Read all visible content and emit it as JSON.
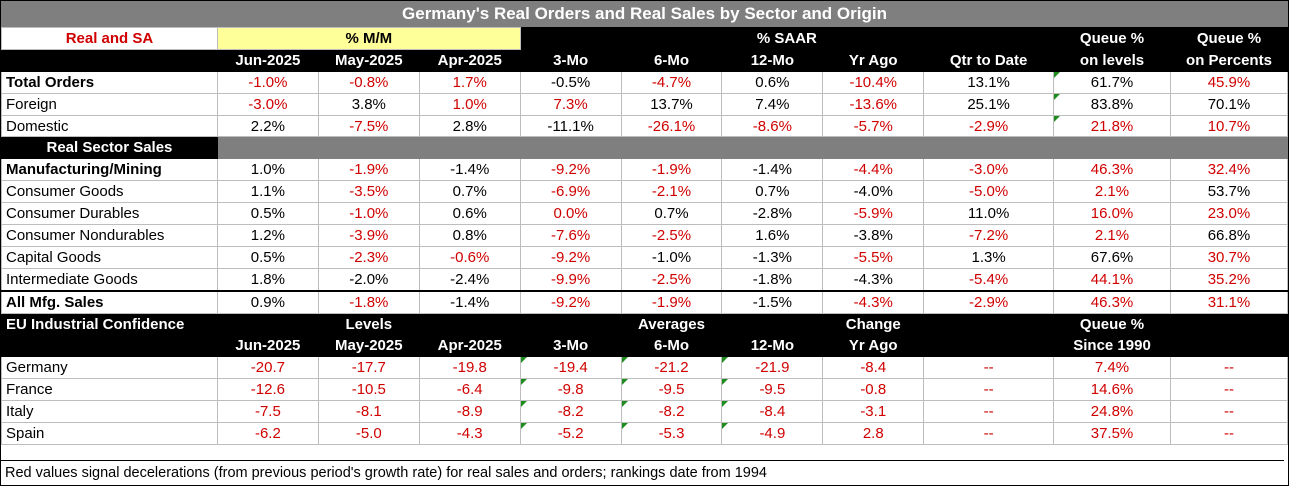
{
  "title": "Germany's Real Orders and Real Sales by Sector and Origin",
  "header": {
    "real_and_sa": "Real and SA",
    "pct_mm": "% M/M",
    "pct_saar": "% SAAR",
    "queue_levels_1": "Queue %",
    "queue_levels_2": "on levels",
    "queue_pct_1": "Queue %",
    "queue_pct_2": "on Percents",
    "cols": [
      "Jun-2025",
      "May-2025",
      "Apr-2025",
      "3-Mo",
      "6-Mo",
      "12-Mo",
      "Yr Ago",
      "Qtr to Date"
    ]
  },
  "orders": [
    {
      "label": "Total Orders",
      "bold": true,
      "vals": [
        "-1.0%",
        "-0.8%",
        "1.7%",
        "-0.5%",
        "-4.7%",
        "0.6%",
        "-10.4%",
        "13.1%",
        "61.7%",
        "45.9%"
      ],
      "red": [
        1,
        1,
        1,
        0,
        1,
        0,
        1,
        0,
        0,
        1
      ],
      "tri": [
        0,
        0,
        0,
        0,
        0,
        0,
        0,
        0,
        1,
        0
      ]
    },
    {
      "label": "Foreign",
      "bold": false,
      "vals": [
        "-3.0%",
        "3.8%",
        "1.0%",
        "7.3%",
        "13.7%",
        "7.4%",
        "-13.6%",
        "25.1%",
        "83.8%",
        "70.1%"
      ],
      "red": [
        1,
        0,
        1,
        1,
        0,
        0,
        1,
        0,
        0,
        0
      ],
      "tri": [
        0,
        0,
        0,
        0,
        0,
        0,
        0,
        0,
        1,
        0
      ]
    },
    {
      "label": "Domestic",
      "bold": false,
      "vals": [
        "2.2%",
        "-7.5%",
        "2.8%",
        "-11.1%",
        "-26.1%",
        "-8.6%",
        "-5.7%",
        "-2.9%",
        "21.8%",
        "10.7%"
      ],
      "red": [
        0,
        1,
        0,
        0,
        1,
        1,
        1,
        1,
        1,
        1
      ],
      "tri": [
        0,
        0,
        0,
        0,
        0,
        0,
        0,
        0,
        1,
        0
      ]
    }
  ],
  "sector_header": "Real Sector Sales",
  "sectors": [
    {
      "label": "Manufacturing/Mining",
      "bold": true,
      "vals": [
        "1.0%",
        "-1.9%",
        "-1.4%",
        "-9.2%",
        "-1.9%",
        "-1.4%",
        "-4.4%",
        "-3.0%",
        "46.3%",
        "32.4%"
      ],
      "red": [
        0,
        1,
        0,
        1,
        1,
        0,
        1,
        1,
        1,
        1
      ]
    },
    {
      "label": "Consumer Goods",
      "bold": false,
      "vals": [
        "1.1%",
        "-3.5%",
        "0.7%",
        "-6.9%",
        "-2.1%",
        "0.7%",
        "-4.0%",
        "-5.0%",
        "2.1%",
        "53.7%"
      ],
      "red": [
        0,
        1,
        0,
        1,
        1,
        0,
        0,
        1,
        1,
        0
      ]
    },
    {
      "label": " Consumer Durables",
      "bold": false,
      "vals": [
        "0.5%",
        "-1.0%",
        "0.6%",
        "0.0%",
        "0.7%",
        "-2.8%",
        "-5.9%",
        "11.0%",
        "16.0%",
        "23.0%"
      ],
      "red": [
        0,
        1,
        0,
        1,
        0,
        0,
        1,
        0,
        1,
        1
      ]
    },
    {
      "label": "  Consumer Nondurables",
      "bold": false,
      "vals": [
        "1.2%",
        "-3.9%",
        "0.8%",
        "-7.6%",
        "-2.5%",
        "1.6%",
        "-3.8%",
        "-7.2%",
        "2.1%",
        "66.8%"
      ],
      "red": [
        0,
        1,
        0,
        1,
        1,
        0,
        0,
        1,
        1,
        0
      ]
    },
    {
      "label": "Capital Goods",
      "bold": false,
      "vals": [
        "0.5%",
        "-2.3%",
        "-0.6%",
        "-9.2%",
        "-1.0%",
        "-1.3%",
        "-5.5%",
        "1.3%",
        "67.6%",
        "30.7%"
      ],
      "red": [
        0,
        1,
        1,
        1,
        0,
        0,
        1,
        0,
        0,
        1
      ]
    },
    {
      "label": "Intermediate Goods",
      "bold": false,
      "vals": [
        "1.8%",
        "-2.0%",
        "-2.4%",
        "-9.9%",
        "-2.5%",
        "-1.8%",
        "-4.3%",
        "-5.4%",
        "44.1%",
        "35.2%"
      ],
      "red": [
        0,
        0,
        0,
        1,
        1,
        0,
        0,
        1,
        1,
        1
      ]
    }
  ],
  "all_mfg": {
    "label": "All Mfg. Sales",
    "vals": [
      "0.9%",
      "-1.8%",
      "-1.4%",
      "-9.2%",
      "-1.9%",
      "-1.5%",
      "-4.3%",
      "-2.9%",
      "46.3%",
      "31.1%"
    ],
    "red": [
      0,
      1,
      0,
      1,
      1,
      0,
      1,
      1,
      1,
      1
    ]
  },
  "eu": {
    "label": "EU Industrial Confidence",
    "levels": "Levels",
    "averages": "Averages",
    "change_1": "Change",
    "change_2": "Yr Ago",
    "queue_1": "Queue %",
    "queue_2": "Since 1990",
    "cols": [
      "Jun-2025",
      "May-2025",
      "Apr-2025",
      "3-Mo",
      "6-Mo",
      "12-Mo"
    ],
    "rows": [
      {
        "label": "Germany",
        "vals": [
          "-20.7",
          "-17.7",
          "-19.8",
          "-19.4",
          "-21.2",
          "-21.9",
          "-8.4",
          "--",
          "7.4%",
          "--"
        ]
      },
      {
        "label": "France",
        "vals": [
          "-12.6",
          "-10.5",
          "-6.4",
          "-9.8",
          "-9.5",
          "-9.5",
          "-0.8",
          "--",
          "14.6%",
          "--"
        ]
      },
      {
        "label": "Italy",
        "vals": [
          "-7.5",
          "-8.1",
          "-8.9",
          "-8.2",
          "-8.2",
          "-8.4",
          "-3.1",
          "--",
          "24.8%",
          "--"
        ]
      },
      {
        "label": "Spain",
        "vals": [
          "-6.2",
          "-5.0",
          "-4.3",
          "-5.2",
          "-5.3",
          "-4.9",
          "2.8",
          "--",
          "37.5%",
          "--"
        ]
      }
    ]
  },
  "note": "Red values signal decelerations (from previous period's growth rate) for real sales and orders; rankings date from 1994",
  "colors": {
    "red": "#d00000",
    "black_band": "#000000",
    "gray_band": "#7f7f7f",
    "yellow": "#ffff99",
    "marker_green": "#1e8c1e"
  }
}
